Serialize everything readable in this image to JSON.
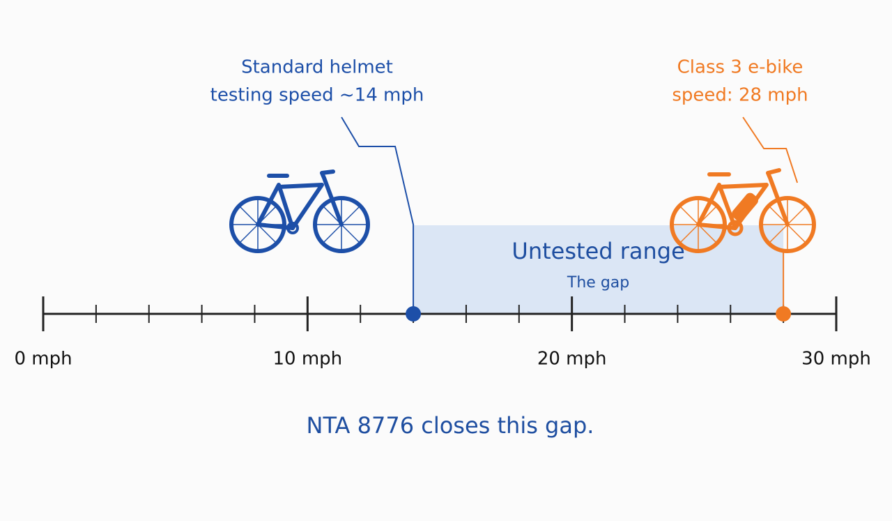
{
  "diagram": {
    "axis": {
      "range": [
        0,
        30
      ],
      "ticks": [
        {
          "value": 0,
          "label": "0 mph"
        },
        {
          "value": 10,
          "label": "10 mph"
        },
        {
          "value": 20,
          "label": "20 mph"
        },
        {
          "value": 30,
          "label": "30 mph"
        }
      ]
    },
    "markers": [
      {
        "value": 14,
        "label": [
          "Standard helmet",
          "testing speed ~14 mph"
        ],
        "color": "#1d4fa8"
      },
      {
        "value": 28,
        "label": [
          "Class 3 e-bike",
          "speed: 28 mph"
        ],
        "color": "#f07a23"
      }
    ],
    "gap": {
      "title": "Untested range",
      "subtitle": "The gap",
      "color": "#dbe6f5"
    },
    "footer": "NTA 8776 closes this gap."
  }
}
